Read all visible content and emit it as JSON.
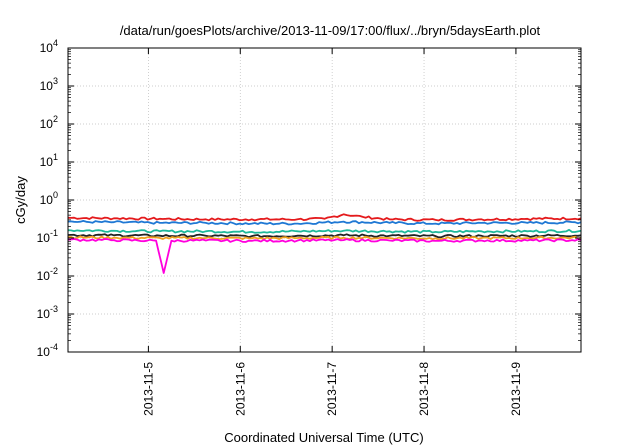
{
  "chart_data": {
    "type": "line",
    "title": "/data/run/goesPlots/archive/2013-11-09/17:00/flux/../bryn/5daysEarth.plot",
    "xlabel": "Coordinated Universal Time (UTC)",
    "ylabel": "cGy/day",
    "yscale": "log",
    "ylim": [
      0.0001,
      10000
    ],
    "xlim": [
      "2013-11-04 03:00",
      "2013-11-09 17:00"
    ],
    "grid": true,
    "legend": "none",
    "y_ticks": [
      {
        "base": "10",
        "exp": "-4"
      },
      {
        "base": "10",
        "exp": "-3"
      },
      {
        "base": "10",
        "exp": "-2"
      },
      {
        "base": "10",
        "exp": "-1"
      },
      {
        "base": "10",
        "exp": "0"
      },
      {
        "base": "10",
        "exp": "1"
      },
      {
        "base": "10",
        "exp": "2"
      },
      {
        "base": "10",
        "exp": "3"
      },
      {
        "base": "10",
        "exp": "4"
      }
    ],
    "x_ticks": [
      "2013-11-5",
      "2013-11-6",
      "2013-11-7",
      "2013-11-8",
      "2013-11-9"
    ],
    "x_tick_dates": [
      "2013-11-05 00:00",
      "2013-11-06 00:00",
      "2013-11-07 00:00",
      "2013-11-08 00:00",
      "2013-11-09 00:00"
    ],
    "series": [
      {
        "color": "#e41a1c",
        "values": [
          {
            "x": "2013-11-04 03:00",
            "y": 0.34
          },
          {
            "x": "2013-11-04 15:00",
            "y": 0.33
          },
          {
            "x": "2013-11-05 03:00",
            "y": 0.32
          },
          {
            "x": "2013-11-05 15:00",
            "y": 0.31
          },
          {
            "x": "2013-11-06 03:00",
            "y": 0.31
          },
          {
            "x": "2013-11-06 15:00",
            "y": 0.31
          },
          {
            "x": "2013-11-06 22:00",
            "y": 0.32
          },
          {
            "x": "2013-11-07 03:00",
            "y": 0.42
          },
          {
            "x": "2013-11-07 08:00",
            "y": 0.36
          },
          {
            "x": "2013-11-07 15:00",
            "y": 0.31
          },
          {
            "x": "2013-11-08 03:00",
            "y": 0.3
          },
          {
            "x": "2013-11-08 15:00",
            "y": 0.31
          },
          {
            "x": "2013-11-09 03:00",
            "y": 0.32
          },
          {
            "x": "2013-11-09 17:00",
            "y": 0.33
          }
        ]
      },
      {
        "color": "#1f78d4",
        "values": [
          {
            "x": "2013-11-04 03:00",
            "y": 0.27
          },
          {
            "x": "2013-11-04 15:00",
            "y": 0.26
          },
          {
            "x": "2013-11-05 03:00",
            "y": 0.25
          },
          {
            "x": "2013-11-05 15:00",
            "y": 0.25
          },
          {
            "x": "2013-11-06 03:00",
            "y": 0.24
          },
          {
            "x": "2013-11-06 15:00",
            "y": 0.24
          },
          {
            "x": "2013-11-07 03:00",
            "y": 0.27
          },
          {
            "x": "2013-11-07 15:00",
            "y": 0.25
          },
          {
            "x": "2013-11-08 03:00",
            "y": 0.24
          },
          {
            "x": "2013-11-08 15:00",
            "y": 0.25
          },
          {
            "x": "2013-11-09 03:00",
            "y": 0.25
          },
          {
            "x": "2013-11-09 17:00",
            "y": 0.26
          }
        ]
      },
      {
        "color": "#1fb89a",
        "values": [
          {
            "x": "2013-11-04 03:00",
            "y": 0.16
          },
          {
            "x": "2013-11-04 15:00",
            "y": 0.155
          },
          {
            "x": "2013-11-05 03:00",
            "y": 0.15
          },
          {
            "x": "2013-11-05 15:00",
            "y": 0.15
          },
          {
            "x": "2013-11-06 03:00",
            "y": 0.145
          },
          {
            "x": "2013-11-06 15:00",
            "y": 0.15
          },
          {
            "x": "2013-11-07 03:00",
            "y": 0.155
          },
          {
            "x": "2013-11-07 15:00",
            "y": 0.15
          },
          {
            "x": "2013-11-08 03:00",
            "y": 0.145
          },
          {
            "x": "2013-11-08 15:00",
            "y": 0.15
          },
          {
            "x": "2013-11-09 03:00",
            "y": 0.15
          },
          {
            "x": "2013-11-09 17:00",
            "y": 0.155
          }
        ]
      },
      {
        "color": "#222222",
        "values": [
          {
            "x": "2013-11-04 03:00",
            "y": 0.12
          },
          {
            "x": "2013-11-04 15:00",
            "y": 0.118
          },
          {
            "x": "2013-11-05 03:00",
            "y": 0.115
          },
          {
            "x": "2013-11-05 15:00",
            "y": 0.115
          },
          {
            "x": "2013-11-06 03:00",
            "y": 0.112
          },
          {
            "x": "2013-11-06 15:00",
            "y": 0.115
          },
          {
            "x": "2013-11-07 03:00",
            "y": 0.118
          },
          {
            "x": "2013-11-07 15:00",
            "y": 0.115
          },
          {
            "x": "2013-11-08 03:00",
            "y": 0.112
          },
          {
            "x": "2013-11-08 15:00",
            "y": 0.114
          },
          {
            "x": "2013-11-09 03:00",
            "y": 0.115
          },
          {
            "x": "2013-11-09 17:00",
            "y": 0.118
          }
        ]
      },
      {
        "color": "#f0a020",
        "values": [
          {
            "x": "2013-11-04 03:00",
            "y": 0.105
          },
          {
            "x": "2013-11-04 15:00",
            "y": 0.102
          },
          {
            "x": "2013-11-05 03:00",
            "y": 0.1
          },
          {
            "x": "2013-11-05 15:00",
            "y": 0.1
          },
          {
            "x": "2013-11-06 03:00",
            "y": 0.098
          },
          {
            "x": "2013-11-06 15:00",
            "y": 0.1
          },
          {
            "x": "2013-11-07 03:00",
            "y": 0.102
          },
          {
            "x": "2013-11-07 15:00",
            "y": 0.1
          },
          {
            "x": "2013-11-08 03:00",
            "y": 0.098
          },
          {
            "x": "2013-11-08 15:00",
            "y": 0.1
          },
          {
            "x": "2013-11-09 03:00",
            "y": 0.1
          },
          {
            "x": "2013-11-09 17:00",
            "y": 0.102
          }
        ]
      },
      {
        "color": "#ff00dd",
        "values": [
          {
            "x": "2013-11-04 03:00",
            "y": 0.09
          },
          {
            "x": "2013-11-04 15:00",
            "y": 0.088
          },
          {
            "x": "2013-11-05 02:00",
            "y": 0.085
          },
          {
            "x": "2013-11-05 04:00",
            "y": 0.012
          },
          {
            "x": "2013-11-05 06:00",
            "y": 0.085
          },
          {
            "x": "2013-11-05 15:00",
            "y": 0.086
          },
          {
            "x": "2013-11-06 03:00",
            "y": 0.084
          },
          {
            "x": "2013-11-06 15:00",
            "y": 0.086
          },
          {
            "x": "2013-11-07 03:00",
            "y": 0.088
          },
          {
            "x": "2013-11-07 15:00",
            "y": 0.086
          },
          {
            "x": "2013-11-08 03:00",
            "y": 0.084
          },
          {
            "x": "2013-11-08 15:00",
            "y": 0.086
          },
          {
            "x": "2013-11-09 03:00",
            "y": 0.086
          },
          {
            "x": "2013-11-09 17:00",
            "y": 0.088
          }
        ]
      }
    ]
  }
}
